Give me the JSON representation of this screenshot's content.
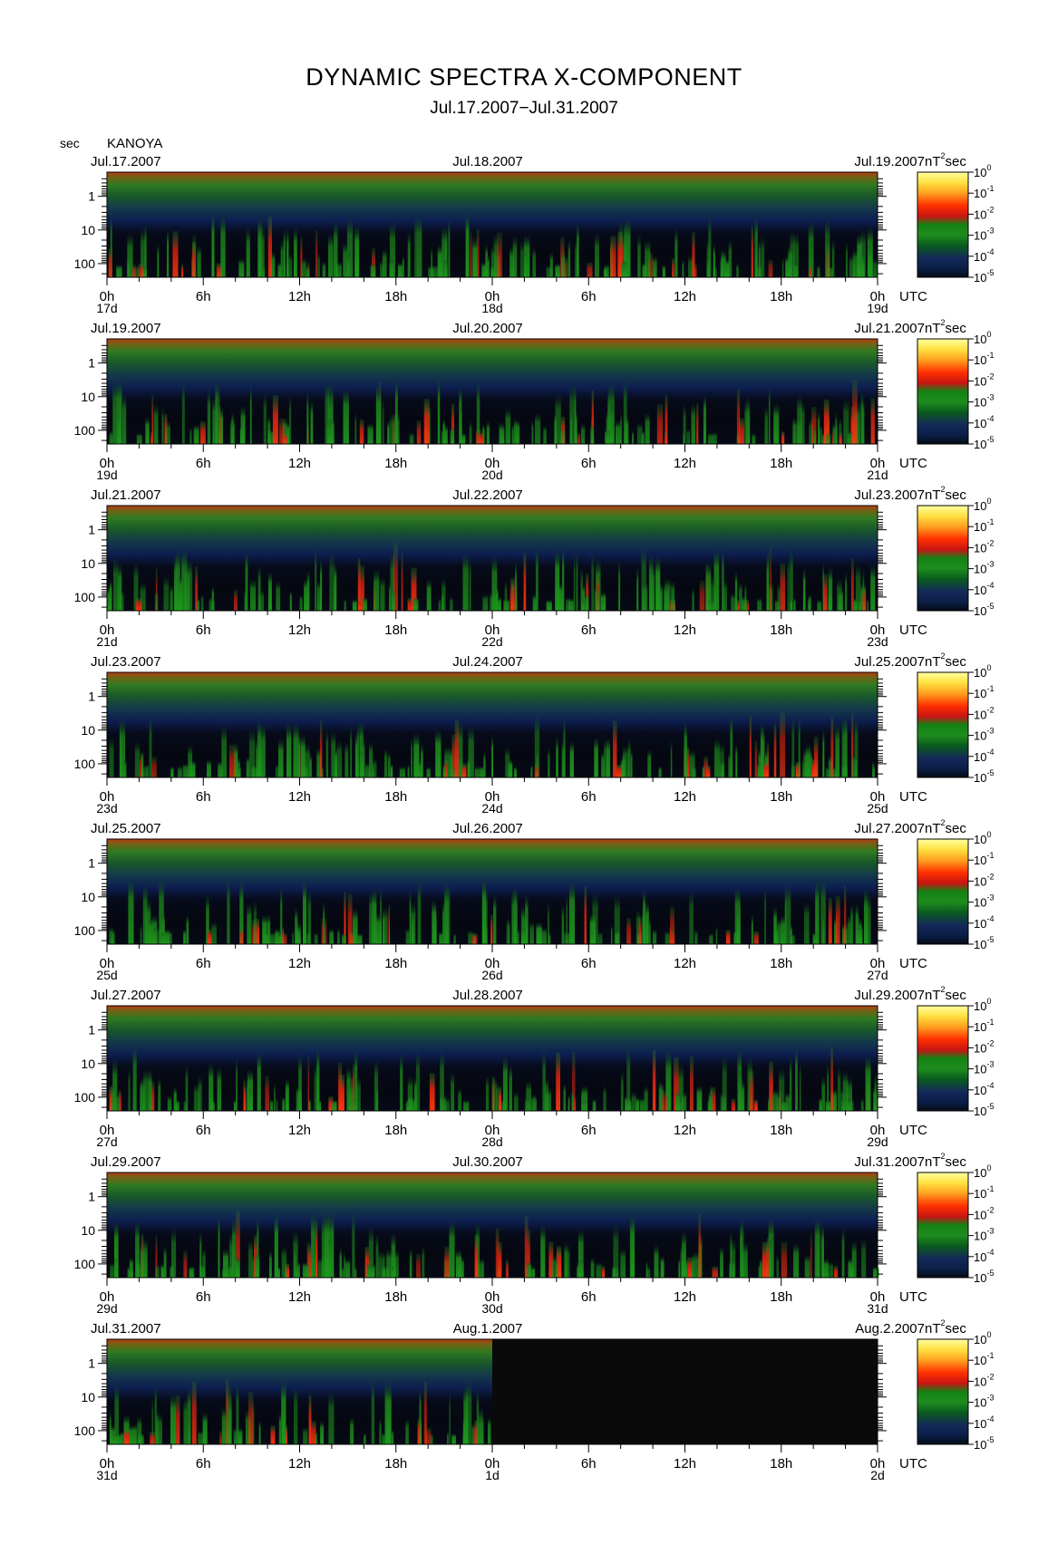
{
  "title": "DYNAMIC SPECTRA X-COMPONENT",
  "subtitle": "Jul.17.2007−Jul.31.2007",
  "chart_data": {
    "type": "heatmap",
    "station": "KANOYA",
    "y_unit_label": "sec",
    "x_unit_label": "UTC",
    "color_unit_label": "nT²sec",
    "y_ticks": [
      "1",
      "10",
      "100"
    ],
    "x_ticks": [
      "0h",
      "6h",
      "12h",
      "18h",
      "0h",
      "6h",
      "12h",
      "18h",
      "0h"
    ],
    "colorbar": {
      "ticks": [
        {
          "base": "10",
          "exp": "0"
        },
        {
          "base": "10",
          "exp": "-1"
        },
        {
          "base": "10",
          "exp": "-2"
        },
        {
          "base": "10",
          "exp": "-3"
        },
        {
          "base": "10",
          "exp": "-4"
        },
        {
          "base": "10",
          "exp": "-5"
        }
      ],
      "colors": [
        "#ffffa0",
        "#ffd020",
        "#ff7010",
        "#ff2000",
        "#c81414",
        "#147814",
        "#1e8c1e",
        "#0a5a1e",
        "#0a1e46",
        "#14285a",
        "#050a14"
      ]
    },
    "panels": [
      {
        "date_left": "Jul.17.2007",
        "date_mid": "Jul.18.2007",
        "date_right": "Jul.19.2007",
        "day_labels": [
          "17d",
          "18d",
          "19d"
        ],
        "data_end_fraction": 1.0
      },
      {
        "date_left": "Jul.19.2007",
        "date_mid": "Jul.20.2007",
        "date_right": "Jul.21.2007",
        "day_labels": [
          "19d",
          "20d",
          "21d"
        ],
        "data_end_fraction": 1.0
      },
      {
        "date_left": "Jul.21.2007",
        "date_mid": "Jul.22.2007",
        "date_right": "Jul.23.2007",
        "day_labels": [
          "21d",
          "22d",
          "23d"
        ],
        "data_end_fraction": 1.0
      },
      {
        "date_left": "Jul.23.2007",
        "date_mid": "Jul.24.2007",
        "date_right": "Jul.25.2007",
        "day_labels": [
          "23d",
          "24d",
          "25d"
        ],
        "data_end_fraction": 1.0
      },
      {
        "date_left": "Jul.25.2007",
        "date_mid": "Jul.26.2007",
        "date_right": "Jul.27.2007",
        "day_labels": [
          "25d",
          "26d",
          "27d"
        ],
        "data_end_fraction": 1.0
      },
      {
        "date_left": "Jul.27.2007",
        "date_mid": "Jul.28.2007",
        "date_right": "Jul.29.2007",
        "day_labels": [
          "27d",
          "28d",
          "29d"
        ],
        "data_end_fraction": 1.0
      },
      {
        "date_left": "Jul.29.2007",
        "date_mid": "Jul.30.2007",
        "date_right": "Jul.31.2007",
        "day_labels": [
          "29d",
          "30d",
          "31d"
        ],
        "data_end_fraction": 1.0
      },
      {
        "date_left": "Jul.31.2007",
        "date_mid": "Aug.1.2007",
        "date_right": "Aug.2.2007",
        "day_labels": [
          "31d",
          "1d",
          "2d"
        ],
        "data_end_fraction": 0.5
      }
    ]
  }
}
